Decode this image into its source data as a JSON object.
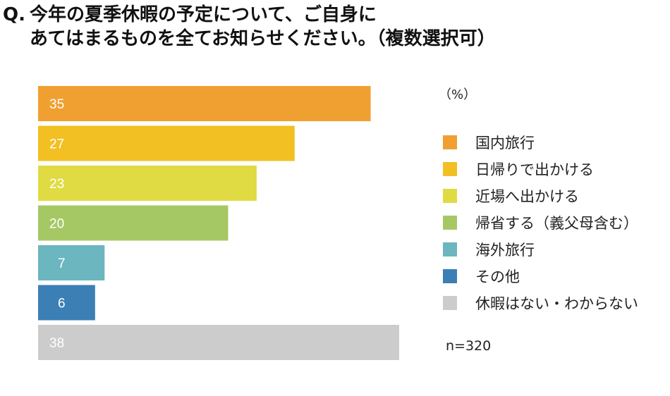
{
  "question": {
    "marker": "Q.",
    "line1": "今年の夏季休暇の予定について、ご自身に",
    "line2": "あてはまるものを全てお知らせください。（複数選択可）"
  },
  "unit_label": "（%）",
  "sample_size": "n=320",
  "chart_data": {
    "type": "bar",
    "orientation": "horizontal",
    "categories": [
      "国内旅行",
      "日帰りで出かける",
      "近場へ出かける",
      "帰省する（義父母含む）",
      "海外旅行",
      "その他",
      "休暇はない・わからない"
    ],
    "values": [
      35,
      27,
      23,
      20,
      7,
      6,
      38
    ],
    "colors": [
      "#f0a030",
      "#f2c022",
      "#e0db42",
      "#a6c864",
      "#6bb6bf",
      "#3b7fb5",
      "#cccccc"
    ],
    "xlim": [
      0,
      38
    ],
    "grid": false,
    "legend_position": "right",
    "unit": "%",
    "title": "",
    "xlabel": "",
    "ylabel": ""
  }
}
